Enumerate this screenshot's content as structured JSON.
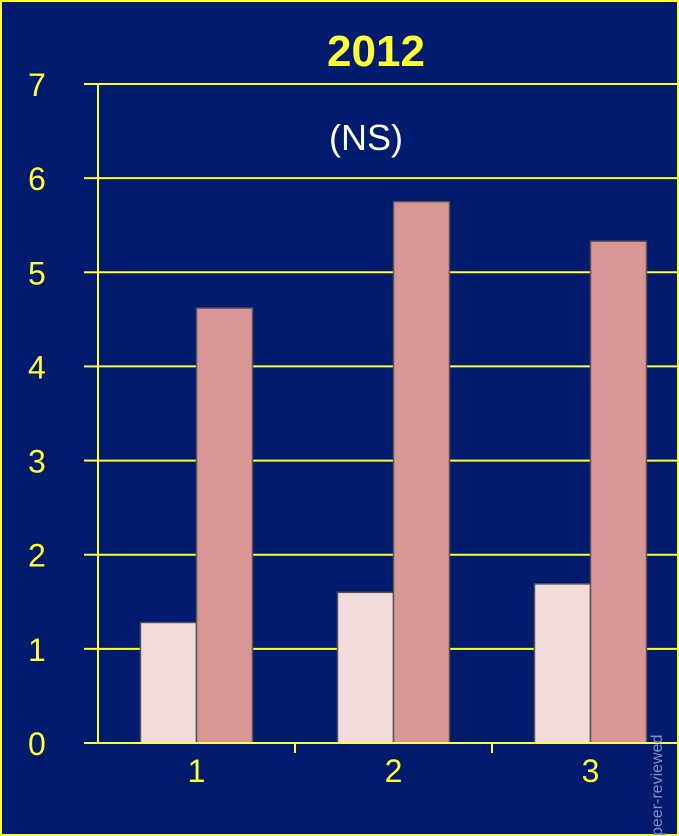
{
  "chart_data": {
    "type": "bar",
    "title": "2012",
    "annotation": "(NS)",
    "categories": [
      "1",
      "2",
      "3"
    ],
    "series": [
      {
        "values": [
          1.28,
          1.6,
          1.69
        ],
        "color": "#f2dcdb"
      },
      {
        "values": [
          4.62,
          5.75,
          5.33
        ],
        "color": "#d99694"
      }
    ],
    "ylim": [
      0,
      7
    ],
    "yticks": [
      "0",
      "1",
      "2",
      "3",
      "4",
      "5",
      "6",
      "7"
    ],
    "xlabel": "",
    "ylabel": "",
    "grid": true
  },
  "style": {
    "background": "#001a6e",
    "axis_color": "#ffff33",
    "text_color": "#ffff33",
    "bar_edge": "#555555"
  },
  "watermark": "peer-reviewed"
}
